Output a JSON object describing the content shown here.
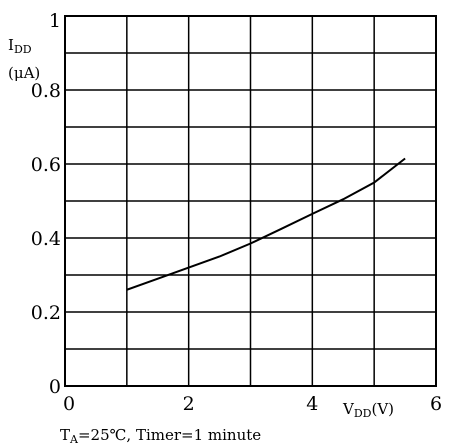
{
  "chart_data": {
    "type": "line",
    "title": "",
    "ylabel_main": "I",
    "ylabel_sub": "DD",
    "ylabel_unit": "(μA)",
    "xlabel_main": "V",
    "xlabel_sub": "DD",
    "xlabel_unit": "(V)",
    "caption_prefix": "T",
    "caption_sub": "A",
    "caption_rest": "=25℃, Timer=1 minute",
    "xlim": [
      0,
      6
    ],
    "ylim": [
      0,
      1
    ],
    "grid": true,
    "x_ticks": [
      {
        "value": 0,
        "label": "0"
      },
      {
        "value": 2,
        "label": "2"
      },
      {
        "value": 4,
        "label": "4"
      },
      {
        "value": 6,
        "label": "6"
      }
    ],
    "y_ticks": [
      {
        "value": 0,
        "label": "0"
      },
      {
        "value": 0.2,
        "label": "0.2"
      },
      {
        "value": 0.4,
        "label": "0.4"
      },
      {
        "value": 0.6,
        "label": "0.6"
      },
      {
        "value": 0.8,
        "label": "0.8"
      },
      {
        "value": 1,
        "label": "1"
      }
    ],
    "series": [
      {
        "x": [
          1.0,
          1.5,
          2.0,
          2.5,
          3.0,
          3.5,
          4.0,
          4.5,
          5.0,
          5.5
        ],
        "y": [
          0.26,
          0.29,
          0.32,
          0.35,
          0.385,
          0.425,
          0.465,
          0.505,
          0.55,
          0.615
        ]
      }
    ]
  }
}
